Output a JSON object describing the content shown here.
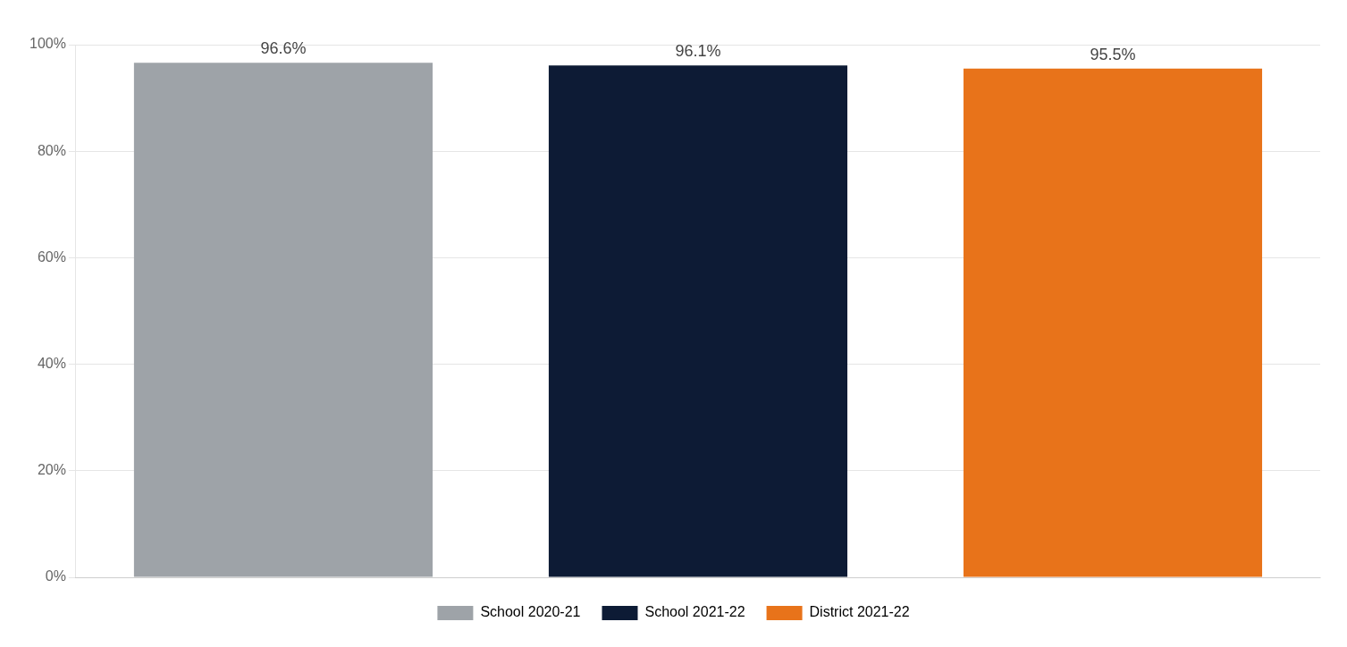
{
  "chart_data": {
    "type": "bar",
    "categories": [
      "School 2020-21",
      "School 2021-22",
      "District 2021-22"
    ],
    "values": [
      0.966,
      0.961,
      0.955
    ],
    "value_labels": [
      "96.6%",
      "96.1%",
      "95.5%"
    ],
    "data_labels": true,
    "colors": [
      "#9ea3a8",
      "#0d1b35",
      "#e8731a"
    ],
    "ylim": [
      0,
      1.0
    ],
    "yticks": [
      {
        "value": 0.0,
        "label": "0%"
      },
      {
        "value": 0.2,
        "label": "20%"
      },
      {
        "value": 0.4,
        "label": "40%"
      },
      {
        "value": 0.6,
        "label": "60%"
      },
      {
        "value": 0.8,
        "label": "80%"
      },
      {
        "value": 1.0,
        "label": "100%"
      }
    ],
    "grid": true,
    "legend": "bottom",
    "tick_labels": "y"
  }
}
